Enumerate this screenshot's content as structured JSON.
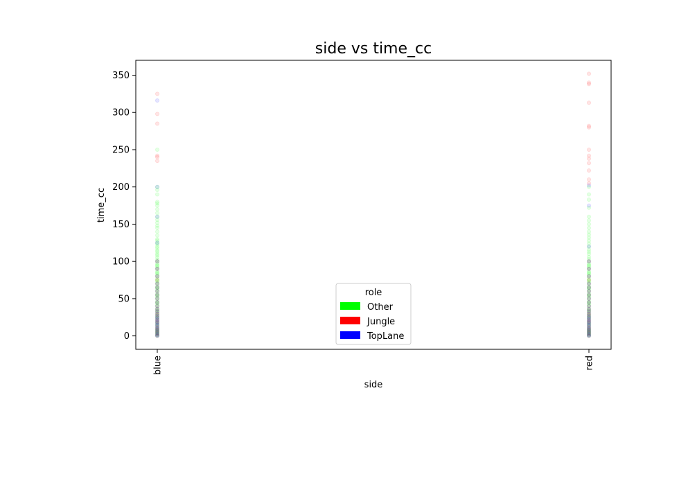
{
  "chart_data": {
    "type": "scatter",
    "title": "side vs time_cc",
    "xlabel": "side",
    "ylabel": "time_cc",
    "categories": [
      "blue",
      "red"
    ],
    "ylim": [
      -18,
      370
    ],
    "yticks": [
      0,
      50,
      100,
      150,
      200,
      250,
      300,
      350
    ],
    "grid": false,
    "legend": {
      "title": "role",
      "placement": "lower-center",
      "entries": [
        {
          "label": "Other",
          "color": "#00ff00"
        },
        {
          "label": "Jungle",
          "color": "#ff0000"
        },
        {
          "label": "TopLane",
          "color": "#0000ff"
        }
      ]
    },
    "series": [
      {
        "name": "Other",
        "color": "#00ff00",
        "points": {
          "blue": [
            0,
            1,
            2,
            3,
            4,
            5,
            6,
            7,
            8,
            9,
            10,
            12,
            14,
            15,
            17,
            18,
            20,
            22,
            24,
            25,
            27,
            28,
            30,
            32,
            34,
            35,
            37,
            40,
            42,
            44,
            45,
            47,
            50,
            52,
            54,
            55,
            57,
            60,
            62,
            64,
            65,
            67,
            70,
            72,
            74,
            75,
            77,
            80,
            82,
            84,
            85,
            87,
            90,
            92,
            94,
            95,
            97,
            100,
            102,
            105,
            108,
            110,
            113,
            115,
            118,
            120,
            123,
            125,
            128,
            130,
            135,
            140,
            145,
            148,
            152,
            156,
            160,
            165,
            170,
            175,
            178,
            180,
            190,
            196,
            200,
            250
          ],
          "red": [
            0,
            1,
            2,
            3,
            4,
            5,
            6,
            7,
            8,
            9,
            10,
            12,
            14,
            15,
            17,
            18,
            20,
            22,
            24,
            25,
            27,
            28,
            30,
            32,
            34,
            35,
            37,
            40,
            42,
            44,
            45,
            47,
            50,
            52,
            54,
            55,
            57,
            60,
            62,
            64,
            65,
            67,
            70,
            72,
            74,
            75,
            77,
            80,
            82,
            84,
            85,
            87,
            90,
            92,
            94,
            95,
            97,
            100,
            103,
            106,
            110,
            113,
            116,
            120,
            124,
            128,
            132,
            136,
            140,
            145,
            150,
            155,
            160,
            172,
            183,
            190,
            200
          ]
        }
      },
      {
        "name": "Jungle",
        "color": "#ff0000",
        "points": {
          "blue": [
            0,
            2,
            4,
            6,
            8,
            10,
            12,
            15,
            18,
            20,
            22,
            25,
            28,
            30,
            33,
            36,
            40,
            45,
            50,
            55,
            60,
            65,
            70,
            75,
            80,
            90,
            100,
            240,
            235,
            242,
            285,
            298,
            325
          ],
          "red": [
            0,
            2,
            4,
            6,
            8,
            10,
            12,
            15,
            18,
            20,
            22,
            25,
            28,
            30,
            33,
            36,
            40,
            45,
            50,
            55,
            60,
            65,
            70,
            75,
            80,
            90,
            100,
            205,
            210,
            222,
            232,
            238,
            242,
            250,
            280,
            282,
            313,
            338,
            340,
            352
          ]
        }
      },
      {
        "name": "TopLane",
        "color": "#0000ff",
        "points": {
          "blue": [
            0,
            1,
            3,
            5,
            7,
            9,
            11,
            13,
            15,
            17,
            19,
            21,
            23,
            25,
            27,
            30,
            33,
            36,
            40,
            45,
            50,
            55,
            60,
            65,
            70,
            80,
            90,
            100,
            125,
            160,
            200,
            316
          ],
          "red": [
            0,
            1,
            3,
            5,
            7,
            9,
            11,
            13,
            15,
            17,
            19,
            21,
            23,
            25,
            27,
            30,
            33,
            36,
            40,
            45,
            50,
            55,
            60,
            65,
            70,
            80,
            90,
            100,
            120,
            175,
            202
          ]
        }
      }
    ]
  }
}
